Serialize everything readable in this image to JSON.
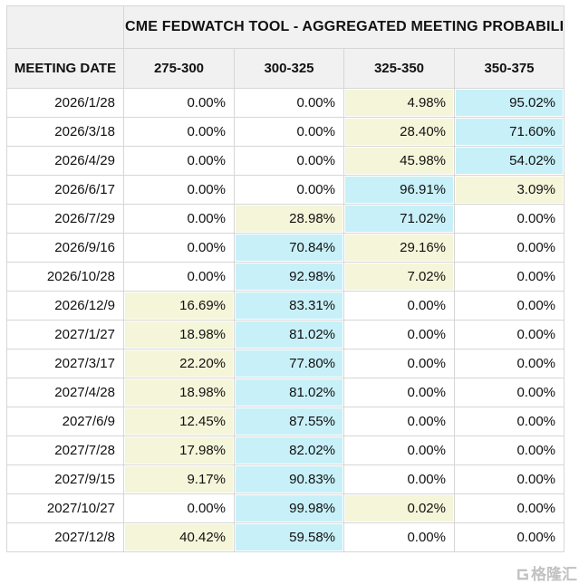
{
  "table": {
    "title": "CME FEDWATCH TOOL - AGGREGATED MEETING PROBABILITIES",
    "columns": [
      "MEETING DATE",
      "275-300",
      "300-325",
      "325-350",
      "350-375"
    ],
    "rows": [
      {
        "date": "2026/1/28",
        "values": [
          "0.00%",
          "0.00%",
          "4.98%",
          "95.02%"
        ],
        "highlights": [
          "",
          "",
          "yellow",
          "cyan"
        ]
      },
      {
        "date": "2026/3/18",
        "values": [
          "0.00%",
          "0.00%",
          "28.40%",
          "71.60%"
        ],
        "highlights": [
          "",
          "",
          "yellow",
          "cyan"
        ]
      },
      {
        "date": "2026/4/29",
        "values": [
          "0.00%",
          "0.00%",
          "45.98%",
          "54.02%"
        ],
        "highlights": [
          "",
          "",
          "yellow",
          "cyan"
        ]
      },
      {
        "date": "2026/6/17",
        "values": [
          "0.00%",
          "0.00%",
          "96.91%",
          "3.09%"
        ],
        "highlights": [
          "",
          "",
          "cyan",
          "yellow"
        ]
      },
      {
        "date": "2026/7/29",
        "values": [
          "0.00%",
          "28.98%",
          "71.02%",
          "0.00%"
        ],
        "highlights": [
          "",
          "yellow",
          "cyan",
          ""
        ]
      },
      {
        "date": "2026/9/16",
        "values": [
          "0.00%",
          "70.84%",
          "29.16%",
          "0.00%"
        ],
        "highlights": [
          "",
          "cyan",
          "yellow",
          ""
        ]
      },
      {
        "date": "2026/10/28",
        "values": [
          "0.00%",
          "92.98%",
          "7.02%",
          "0.00%"
        ],
        "highlights": [
          "",
          "cyan",
          "yellow",
          ""
        ]
      },
      {
        "date": "2026/12/9",
        "values": [
          "16.69%",
          "83.31%",
          "0.00%",
          "0.00%"
        ],
        "highlights": [
          "yellow",
          "cyan",
          "",
          ""
        ]
      },
      {
        "date": "2027/1/27",
        "values": [
          "18.98%",
          "81.02%",
          "0.00%",
          "0.00%"
        ],
        "highlights": [
          "yellow",
          "cyan",
          "",
          ""
        ]
      },
      {
        "date": "2027/3/17",
        "values": [
          "22.20%",
          "77.80%",
          "0.00%",
          "0.00%"
        ],
        "highlights": [
          "yellow",
          "cyan",
          "",
          ""
        ]
      },
      {
        "date": "2027/4/28",
        "values": [
          "18.98%",
          "81.02%",
          "0.00%",
          "0.00%"
        ],
        "highlights": [
          "yellow",
          "cyan",
          "",
          ""
        ]
      },
      {
        "date": "2027/6/9",
        "values": [
          "12.45%",
          "87.55%",
          "0.00%",
          "0.00%"
        ],
        "highlights": [
          "yellow",
          "cyan",
          "",
          ""
        ]
      },
      {
        "date": "2027/7/28",
        "values": [
          "17.98%",
          "82.02%",
          "0.00%",
          "0.00%"
        ],
        "highlights": [
          "yellow",
          "cyan",
          "",
          ""
        ]
      },
      {
        "date": "2027/9/15",
        "values": [
          "9.17%",
          "90.83%",
          "0.00%",
          "0.00%"
        ],
        "highlights": [
          "yellow",
          "cyan",
          "",
          ""
        ]
      },
      {
        "date": "2027/10/27",
        "values": [
          "0.00%",
          "99.98%",
          "0.02%",
          "0.00%"
        ],
        "highlights": [
          "",
          "cyan",
          "yellow",
          ""
        ]
      },
      {
        "date": "2027/12/8",
        "values": [
          "40.42%",
          "59.58%",
          "0.00%",
          "0.00%"
        ],
        "highlights": [
          "yellow",
          "cyan",
          "",
          ""
        ]
      }
    ]
  },
  "colors": {
    "highlight_yellow": "#F5F5DA",
    "highlight_cyan": "#C8F0F8",
    "header_bg": "#F1F1F1",
    "border": "#D6D6D6"
  },
  "watermark": {
    "text": "格隆汇"
  }
}
